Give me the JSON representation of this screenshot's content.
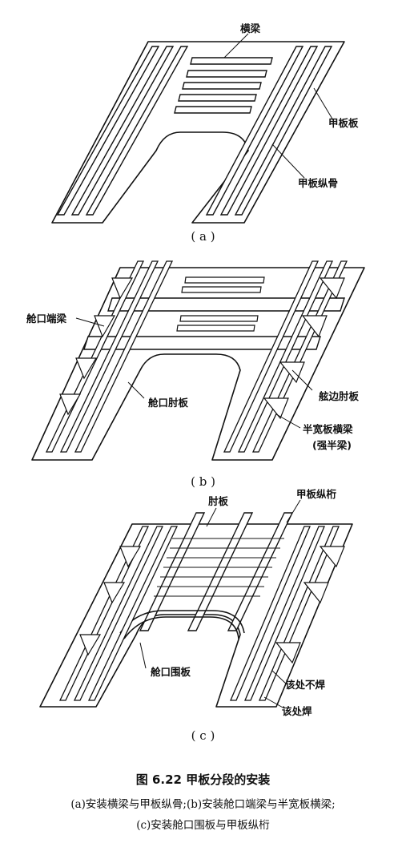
{
  "panel_a": {
    "label_beam": "横梁",
    "label_deck_plate": "甲板板",
    "label_deck_longitudinal": "甲板纵骨",
    "sub_label": "( a )"
  },
  "panel_b": {
    "label_hatch_end_beam": "舱口端梁",
    "label_hatch_bracket": "舱口肘板",
    "label_side_bracket": "舷边肘板",
    "label_half_beam": "半宽板横梁",
    "label_strong_half_beam": "(强半梁)",
    "sub_label": "( b )"
  },
  "panel_c": {
    "label_bracket": "肘板",
    "label_deck_girder": "甲板纵桁",
    "label_hatch_coaming": "舱口围板",
    "label_no_weld": "该处不焊",
    "label_weld": "该处焊",
    "sub_label": "( c )"
  },
  "caption": {
    "title": "图 6.22   甲板分段的安装",
    "line1": "(a)安装横梁与甲板纵骨;(b)安装舱口端梁与半宽板横梁;",
    "line2": "(c)安装舱口围板与甲板纵桁"
  }
}
